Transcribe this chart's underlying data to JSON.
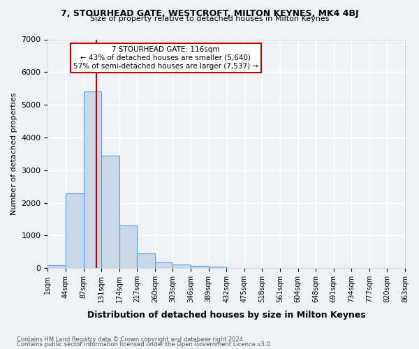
{
  "title1": "7, STOURHEAD GATE, WESTCROFT, MILTON KEYNES, MK4 4BJ",
  "title2": "Size of property relative to detached houses in Milton Keynes",
  "xlabel": "Distribution of detached houses by size in Milton Keynes",
  "ylabel": "Number of detached properties",
  "bin_labels": [
    "1sqm",
    "44sqm",
    "87sqm",
    "131sqm",
    "174sqm",
    "217sqm",
    "260sqm",
    "303sqm",
    "346sqm",
    "389sqm",
    "432sqm",
    "475sqm",
    "518sqm",
    "561sqm",
    "604sqm",
    "648sqm",
    "691sqm",
    "734sqm",
    "777sqm",
    "820sqm",
    "863sqm"
  ],
  "bar_values": [
    80,
    2300,
    5400,
    3450,
    1300,
    450,
    175,
    100,
    65,
    40,
    0,
    0,
    0,
    0,
    0,
    0,
    0,
    0,
    0,
    0
  ],
  "bar_color": "#c8d8e8",
  "bar_edge_color": "#5b9bd5",
  "vline_x": 2.72,
  "vline_color": "#c00000",
  "annotation_text": "7 STOURHEAD GATE: 116sqm\n← 43% of detached houses are smaller (5,640)\n57% of semi-detached houses are larger (7,537) →",
  "annotation_box_color": "#ffffff",
  "annotation_box_edge_color": "#c00000",
  "ylim": [
    0,
    7000
  ],
  "yticks": [
    0,
    1000,
    2000,
    3000,
    4000,
    5000,
    6000,
    7000
  ],
  "footer1": "Contains HM Land Registry data © Crown copyright and database right 2024.",
  "footer2": "Contains public sector information licensed under the Open Government Licence v3.0.",
  "bg_color": "#eef2f7",
  "plot_bg_color": "#eef2f7",
  "grid_color": "#ffffff"
}
